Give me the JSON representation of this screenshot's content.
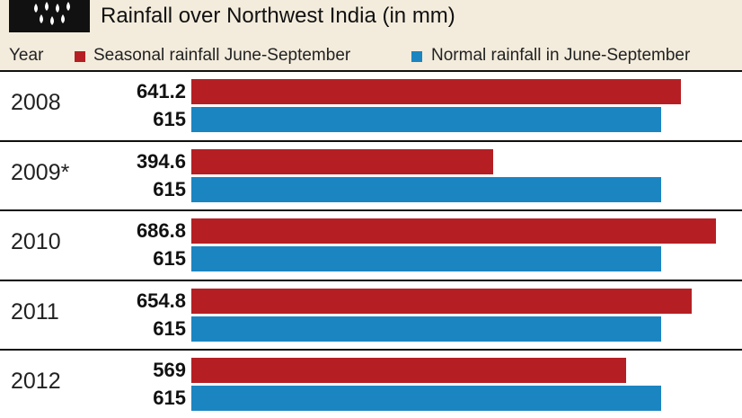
{
  "header": {
    "title": "Rainfall over Northwest India (in mm)",
    "icon": "rain-icon"
  },
  "legend": {
    "year_label": "Year",
    "items": [
      {
        "label": "Seasonal rainfall June-September",
        "color": "#b51f24"
      },
      {
        "label": "Normal rainfall in June-September",
        "color": "#1b85c1"
      }
    ]
  },
  "chart_data": {
    "type": "bar",
    "orientation": "horizontal",
    "title": "Rainfall over Northwest India (in mm)",
    "categories": [
      "2008",
      "2009*",
      "2010",
      "2011",
      "2012"
    ],
    "series": [
      {
        "name": "Seasonal rainfall June-September",
        "color": "#b51f24",
        "values": [
          641.2,
          394.6,
          686.8,
          654.8,
          569
        ],
        "labels": [
          "641.2",
          "394.6",
          "686.8",
          "654.8",
          "569"
        ]
      },
      {
        "name": "Normal rainfall in June-September",
        "color": "#1b85c1",
        "values": [
          615,
          615,
          615,
          615,
          615
        ],
        "labels": [
          "615",
          "615",
          "615",
          "615",
          "615"
        ]
      }
    ],
    "xlabel": "",
    "ylabel": "Year",
    "xlim": [
      0,
      700
    ],
    "grid": false,
    "legend_position": "top"
  }
}
